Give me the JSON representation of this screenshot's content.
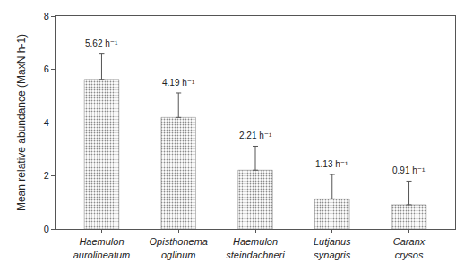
{
  "chart_data": {
    "type": "bar",
    "y_label": "Mean relative abundance (MaxN h-1)",
    "categories": [
      "Haemulon aurolineatum",
      "Opisthonema oglinum",
      "Haemulon steindachneri",
      "Lutjanus synagris",
      "Caranx crysos"
    ],
    "values": [
      5.62,
      4.19,
      2.21,
      1.13,
      0.91
    ],
    "value_labels": [
      "5.62 h⁻¹",
      "4.19 h⁻¹",
      "2.21 h⁻¹",
      "1.13 h⁻¹",
      "0.91 h⁻¹"
    ],
    "errors": [
      0.98,
      0.92,
      0.9,
      0.92,
      0.89
    ],
    "color": "#a6a6a6",
    "ylim": [
      0,
      8
    ],
    "yticks": [
      0,
      2,
      4,
      6,
      8
    ],
    "grid": false,
    "data_labels": true
  }
}
